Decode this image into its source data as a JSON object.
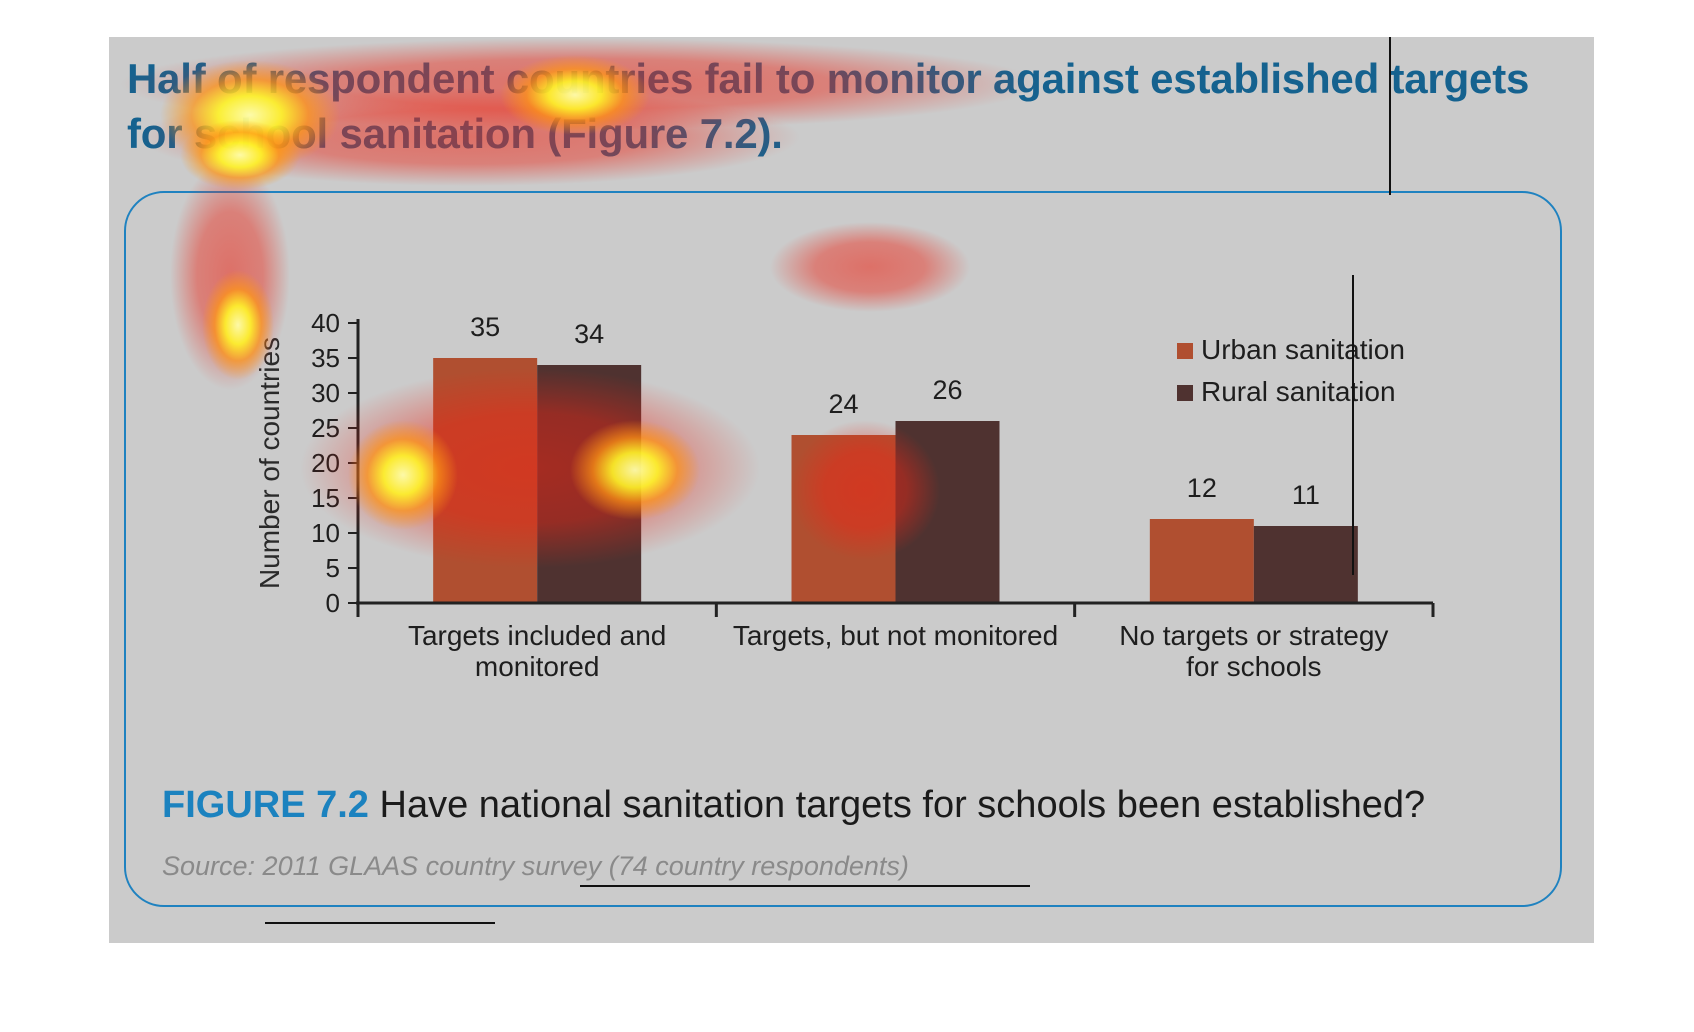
{
  "headline": "Half of respondent countries fail to monitor against established targets for school sanitation (Figure 7.2).",
  "caption": {
    "label": "FIGURE 7.2",
    "text": "Have national sanitation targets for schools been established?"
  },
  "source": "Source: 2011 GLAAS country survey (74 country respondents)",
  "colors": {
    "urban": "#b04f30",
    "rural": "#4f3230",
    "accent": "#1b82bf",
    "headline": "#15628f"
  },
  "chart_data": {
    "type": "bar",
    "title": "",
    "xlabel": "",
    "ylabel": "Number of countries",
    "ylim": [
      0,
      40
    ],
    "yticks": [
      0,
      5,
      10,
      15,
      20,
      25,
      30,
      35,
      40
    ],
    "categories": [
      [
        "Targets included and",
        "monitored"
      ],
      [
        "Targets, but not monitored"
      ],
      [
        "No targets or strategy",
        "for schools"
      ]
    ],
    "series": [
      {
        "name": "Urban sanitation",
        "values": [
          35,
          24,
          12
        ]
      },
      {
        "name": "Rural sanitation",
        "values": [
          34,
          26,
          11
        ]
      }
    ],
    "legend": "top-right",
    "grid": false
  }
}
